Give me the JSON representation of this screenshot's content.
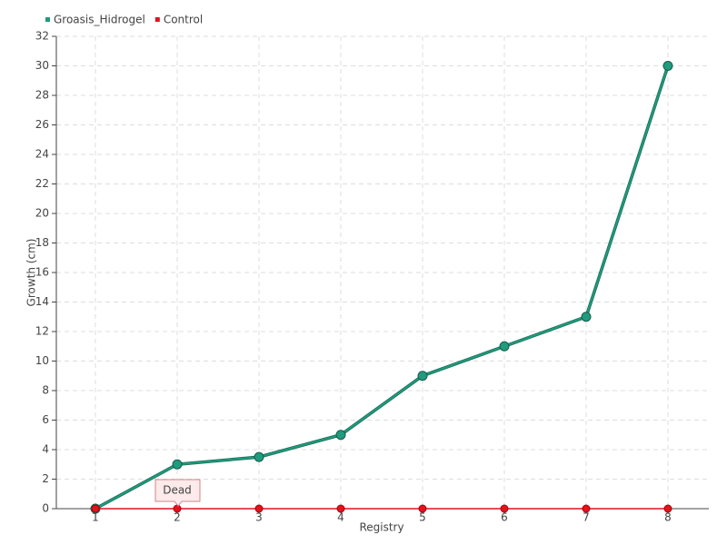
{
  "chart_data": {
    "type": "line",
    "categories": [
      "1",
      "2",
      "3",
      "4",
      "5",
      "6",
      "7",
      "8"
    ],
    "series": [
      {
        "name": "Groasis_Hidrogel",
        "color": "#1f9b7d",
        "values": [
          0,
          3,
          3.5,
          5,
          9,
          11,
          13,
          30
        ]
      },
      {
        "name": "Control",
        "color": "#e0141e",
        "values": [
          0,
          0,
          0,
          0,
          0,
          0,
          0,
          0
        ]
      }
    ],
    "ylabel": "Growth (cm)",
    "xlabel": "Registry",
    "ylim": [
      0,
      32
    ],
    "yticks": [
      0,
      2,
      4,
      6,
      8,
      10,
      12,
      14,
      16,
      18,
      20,
      22,
      24,
      26,
      28,
      30,
      32
    ],
    "grid": true,
    "legend": "top-left",
    "annotation": "Dead"
  }
}
